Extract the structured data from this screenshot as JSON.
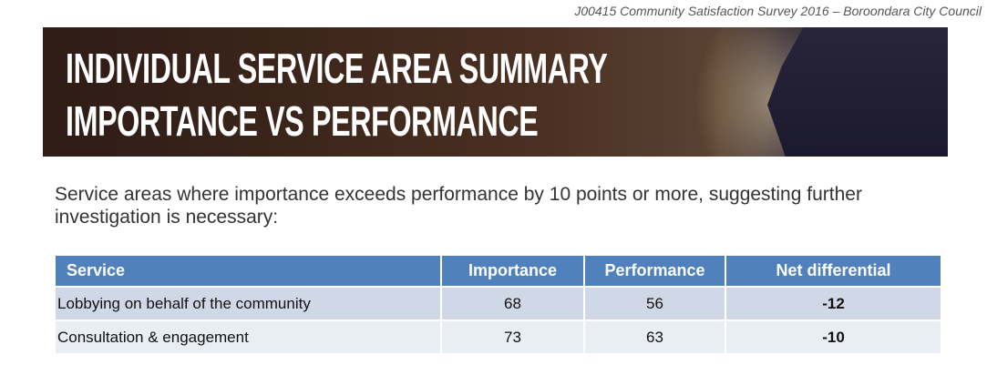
{
  "header": {
    "document_ref": "J00415 Community Satisfaction Survey 2016 – Boroondara City Council"
  },
  "banner": {
    "title_line1": "INDIVIDUAL SERVICE AREA SUMMARY",
    "title_line2": "IMPORTANCE VS PERFORMANCE"
  },
  "intro": "Service areas where importance exceeds performance by 10 points or more, suggesting further investigation is necessary:",
  "table": {
    "columns": [
      "Service",
      "Importance",
      "Performance",
      "Net differential"
    ],
    "rows": [
      [
        "Lobbying on behalf of the community",
        "68",
        "56",
        "-12"
      ],
      [
        "Consultation & engagement",
        "73",
        "63",
        "-10"
      ]
    ]
  }
}
